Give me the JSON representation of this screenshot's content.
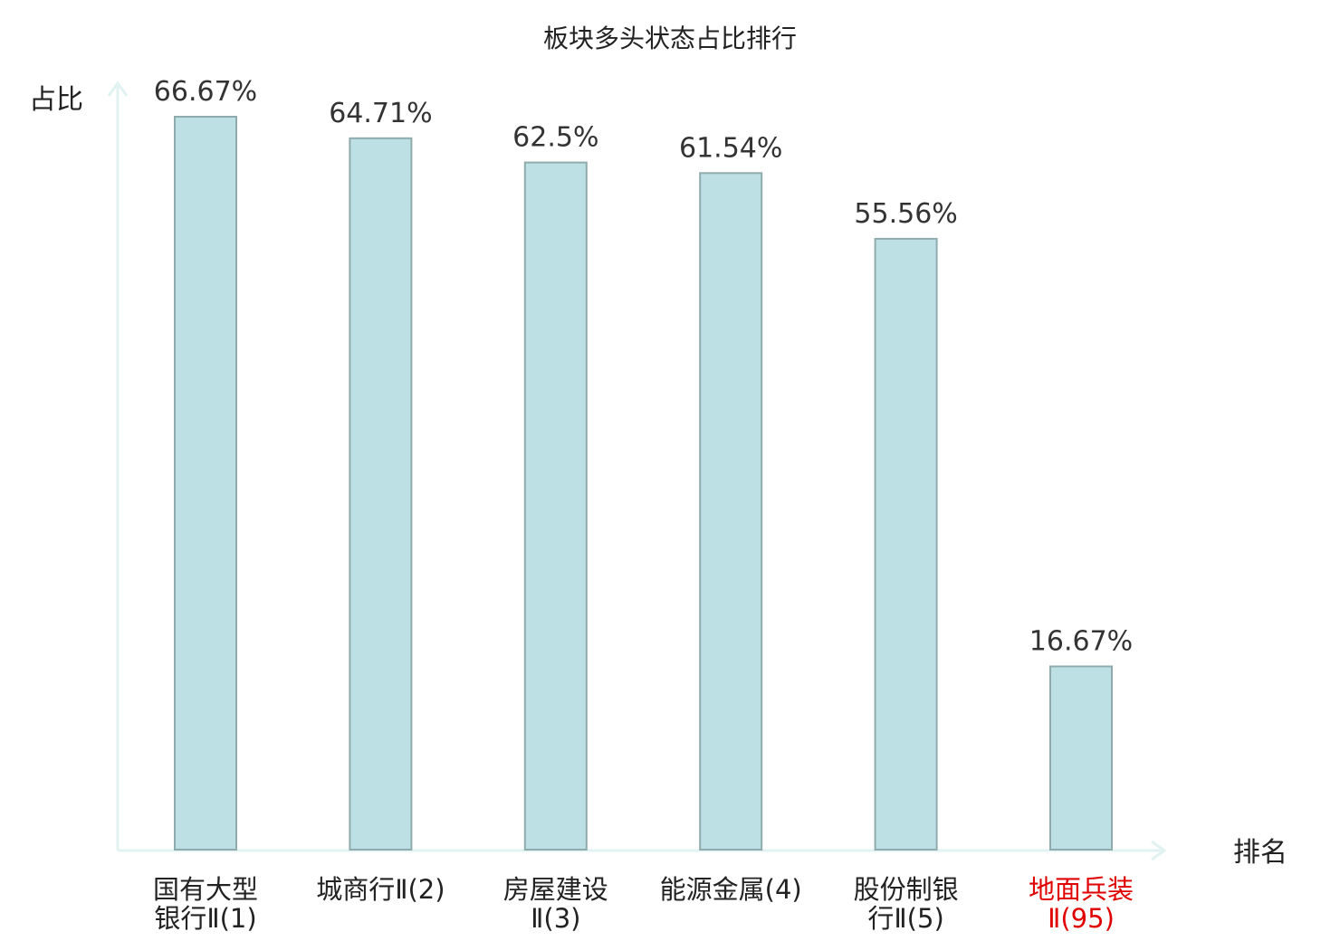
{
  "chart_data": {
    "type": "bar",
    "title": "板块多头状态占比排行",
    "ylabel": "占比",
    "xlabel": "排名",
    "ylim": [
      0,
      70
    ],
    "grid": false,
    "categories": [
      [
        "国有大型",
        "银行Ⅱ(1)"
      ],
      [
        "城商行Ⅱ(2)"
      ],
      [
        "房屋建设",
        "Ⅱ(3)"
      ],
      [
        "能源金属(4)"
      ],
      [
        "股份制银",
        "行Ⅱ(5)"
      ],
      [
        "地面兵装",
        "Ⅱ(95)"
      ]
    ],
    "values": [
      66.67,
      64.71,
      62.5,
      61.54,
      55.56,
      16.67
    ],
    "value_labels": [
      "66.67%",
      "64.71%",
      "62.5%",
      "61.54%",
      "55.56%",
      "16.67%"
    ],
    "highlight_index": 5,
    "colors": {
      "bar_fill": "#bce0e3",
      "bar_stroke": "#8fabad",
      "axis": "#e0f2f1",
      "highlight_text": "#e00000",
      "text": "#222222"
    }
  }
}
